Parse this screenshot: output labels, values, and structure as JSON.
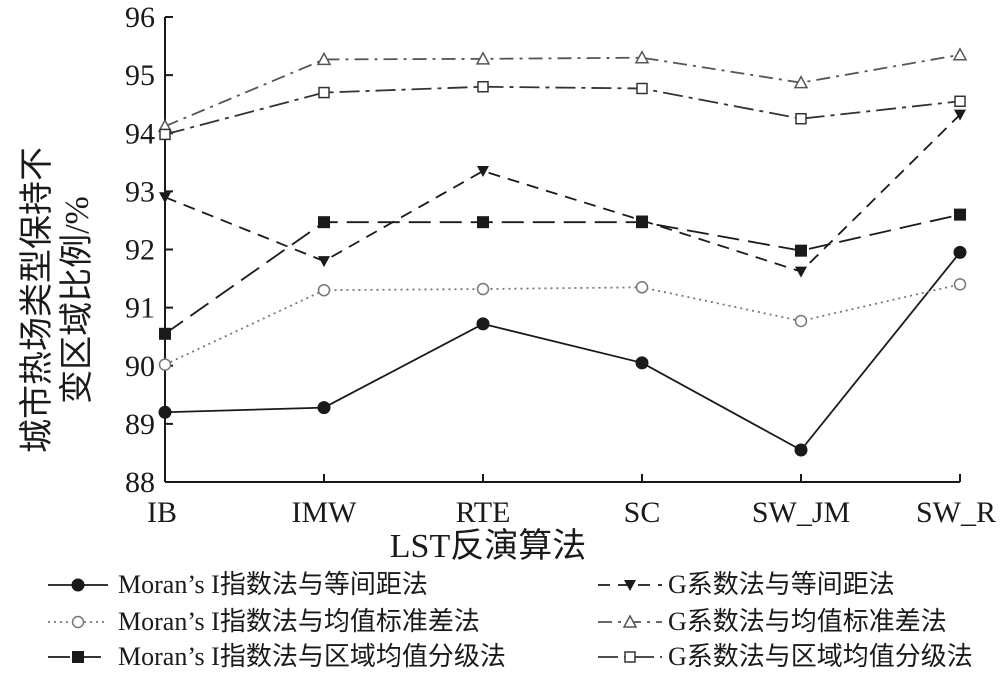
{
  "chart_data": {
    "type": "line",
    "xlabel": "LST反演算法",
    "ylabel_lines": [
      "城市热场类型保持不",
      "变区域比例/%"
    ],
    "categories": [
      "IB",
      "IMW",
      "RTE",
      "SC",
      "SW_JM",
      "SW_R"
    ],
    "ylim": [
      88,
      96
    ],
    "yticks": [
      88,
      89,
      90,
      91,
      92,
      93,
      94,
      95,
      96
    ],
    "grid": false,
    "legend_position": "bottom",
    "series": [
      {
        "name": "Moran’s I指数法与等间距法",
        "values": [
          89.2,
          89.28,
          90.72,
          90.05,
          88.55,
          91.95
        ],
        "marker": "filled-circle",
        "dash": "solid",
        "color": "#1a1a1a"
      },
      {
        "name": "Moran’s I指数法与均值标准差法",
        "values": [
          90.02,
          91.3,
          91.32,
          91.35,
          90.77,
          91.4
        ],
        "marker": "open-circle",
        "dash": "dotted",
        "color": "#777777"
      },
      {
        "name": "Moran’s I指数法与区域均值分级法",
        "values": [
          90.55,
          92.47,
          92.47,
          92.47,
          91.98,
          92.6
        ],
        "marker": "filled-square",
        "dash": "long-dash",
        "color": "#1a1a1a"
      },
      {
        "name": "G系数法与等间距法",
        "values": [
          92.9,
          91.8,
          93.35,
          92.5,
          91.62,
          94.32
        ],
        "marker": "filled-triangle-down",
        "dash": "dash",
        "color": "#1a1a1a"
      },
      {
        "name": "G系数法与均值标准差法",
        "values": [
          94.12,
          95.27,
          95.28,
          95.3,
          94.87,
          95.35
        ],
        "marker": "open-triangle-up",
        "dash": "dash-dot",
        "color": "#555555"
      },
      {
        "name": "G系数法与区域均值分级法",
        "values": [
          93.98,
          94.7,
          94.8,
          94.77,
          94.25,
          94.55
        ],
        "marker": "open-square",
        "dash": "long-dash-dot",
        "color": "#333333"
      }
    ]
  }
}
